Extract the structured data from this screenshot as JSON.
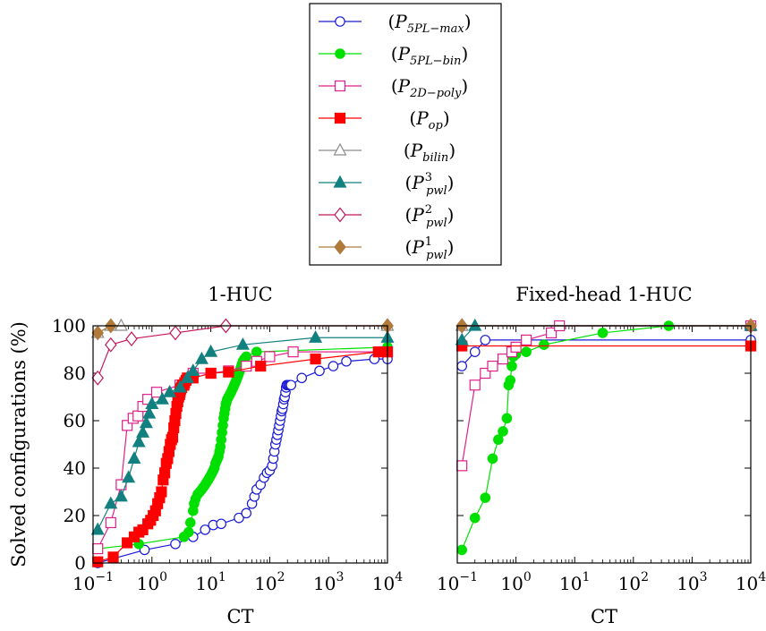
{
  "legend": {
    "placement": "top-center",
    "entries": [
      {
        "label": "(P5PL-max)",
        "main": "P",
        "sub": "5PL−max",
        "sup": "",
        "color": "#1a1ad6",
        "marker": "circle",
        "filled": false
      },
      {
        "label": "(P5PL-bin)",
        "main": "P",
        "sub": "5PL−bin",
        "sup": "",
        "color": "#00e000",
        "marker": "circle",
        "filled": true
      },
      {
        "label": "(P2D-poly)",
        "main": "P",
        "sub": "2D−poly",
        "sup": "",
        "color": "#e0208a",
        "marker": "square",
        "filled": false
      },
      {
        "label": "(Pop)",
        "main": "P",
        "sub": "op",
        "sup": "",
        "color": "#ff0000",
        "marker": "square",
        "filled": true
      },
      {
        "label": "(Pbilin)",
        "main": "P",
        "sub": "bilin",
        "sup": "",
        "color": "#8c8c8c",
        "marker": "triangle",
        "filled": false
      },
      {
        "label": "(P3pwl)",
        "main": "P",
        "sub": "pwl",
        "sup": "3",
        "color": "#138080",
        "marker": "triangle",
        "filled": true
      },
      {
        "label": "(P2pwl)",
        "main": "P",
        "sub": "pwl",
        "sup": "2",
        "color": "#c2185b",
        "marker": "diamond",
        "filled": false
      },
      {
        "label": "(P1pwl)",
        "main": "P",
        "sub": "pwl",
        "sup": "1",
        "color": "#b07a3a",
        "marker": "diamond",
        "filled": true
      }
    ]
  },
  "chart_data": [
    {
      "type": "line",
      "title": "1-HUC",
      "xlabel": "CT",
      "ylabel": "Solved configurations (%)",
      "xscale": "log",
      "xlim": [
        0.1,
        10000
      ],
      "ylim": [
        0,
        100
      ],
      "xticks": [
        "10^-1",
        "10^0",
        "10^1",
        "10^2",
        "10^3",
        "10^4"
      ],
      "yticks": [
        0,
        20,
        40,
        60,
        80,
        100
      ],
      "grid": false,
      "series": [
        {
          "name": "(P5PL-max)",
          "x": [
            0.12,
            0.75,
            2.5,
            5,
            8,
            11,
            15,
            30,
            40,
            50,
            55,
            60,
            70,
            80,
            90,
            100,
            110,
            115,
            120,
            125,
            130,
            135,
            140,
            145,
            150,
            155,
            160,
            165,
            170,
            175,
            180,
            185,
            190,
            195,
            200,
            210,
            220,
            230,
            350,
            700,
            1200,
            2000,
            6000,
            10000
          ],
          "y": [
            0,
            5.5,
            8,
            11,
            14,
            16,
            16.5,
            19,
            21,
            25,
            28,
            31,
            33,
            36,
            38,
            39,
            41,
            44,
            47,
            50,
            52,
            54,
            56,
            58,
            60,
            62,
            64,
            65,
            67,
            69,
            70,
            72,
            74,
            75,
            75,
            75,
            75,
            75,
            78,
            81,
            83,
            85,
            86,
            86
          ]
        },
        {
          "name": "(P5PL-bin)",
          "x": [
            0.12,
            0.6,
            3.5,
            4.2,
            4.5,
            5,
            5.2,
            5.5,
            6,
            6.5,
            7,
            7.5,
            8,
            8.5,
            9,
            9.5,
            10,
            10.5,
            11,
            11.5,
            12,
            12.5,
            13,
            13.5,
            14,
            14.5,
            15,
            15.5,
            16,
            16.5,
            17,
            17.5,
            18,
            18.5,
            19,
            20,
            21,
            22,
            23,
            24,
            25,
            26,
            27,
            28,
            29,
            30,
            31,
            32,
            33,
            34,
            35,
            37,
            40,
            60,
            10000
          ],
          "y": [
            6,
            8,
            11,
            13,
            17,
            22,
            25,
            27,
            29,
            30,
            31,
            32,
            33,
            34,
            35,
            36,
            37,
            38,
            39,
            40,
            42,
            43,
            44,
            45,
            47,
            49,
            52,
            55,
            58,
            61,
            63,
            65,
            67,
            68,
            69,
            70,
            71,
            72,
            73,
            74,
            75,
            76,
            77,
            78,
            79,
            80,
            81,
            82,
            83,
            84,
            85,
            86,
            87,
            89,
            91
          ]
        },
        {
          "name": "(P2D-poly)",
          "x": [
            0.12,
            0.2,
            0.3,
            0.38,
            0.48,
            0.58,
            0.7,
            0.85,
            1.2,
            3,
            5,
            10,
            20,
            40,
            60,
            100,
            250,
            10000
          ],
          "y": [
            6,
            17,
            33,
            58,
            61,
            62,
            66,
            69,
            72,
            75,
            80,
            80,
            81,
            83,
            85,
            87,
            89,
            89
          ]
        },
        {
          "name": "(Pop)",
          "x": [
            0.12,
            0.22,
            0.38,
            0.5,
            0.6,
            0.7,
            0.85,
            0.95,
            1.05,
            1.15,
            1.25,
            1.35,
            1.45,
            1.55,
            1.65,
            1.75,
            1.85,
            1.95,
            2.05,
            2.15,
            2.25,
            2.35,
            2.45,
            2.55,
            2.65,
            2.75,
            2.85,
            2.95,
            3.0,
            3.05,
            3.1,
            3.2,
            3.3,
            3.4,
            3.5,
            3.6,
            3.8,
            4.0,
            5,
            10,
            20,
            70,
            600,
            7000,
            10000
          ],
          "y": [
            0.5,
            2.5,
            8.5,
            11,
            13,
            14,
            16.5,
            18,
            20,
            22,
            25,
            27.5,
            30,
            35,
            38,
            42,
            44,
            47,
            50,
            52,
            53,
            57,
            60,
            63,
            66,
            68,
            70,
            71,
            72,
            73,
            73.5,
            74,
            75,
            75,
            75,
            76,
            77,
            78,
            78,
            80,
            80.5,
            83,
            86,
            89,
            89
          ]
        },
        {
          "name": "(Pbilin)",
          "x": [
            0.12,
            0.2,
            0.3,
            10000
          ],
          "y": [
            97,
            100,
            100,
            100
          ]
        },
        {
          "name": "(P3pwl)",
          "x": [
            0.12,
            0.2,
            0.3,
            0.4,
            0.5,
            0.6,
            0.7,
            0.8,
            0.9,
            1.0,
            1.5,
            2,
            3,
            4,
            5,
            7,
            10,
            35,
            600,
            10000
          ],
          "y": [
            14,
            25,
            28,
            36,
            44,
            51,
            55,
            59,
            63,
            67,
            69,
            72,
            74,
            78,
            81,
            86,
            89,
            92,
            95,
            95
          ]
        },
        {
          "name": "(P2pwl)",
          "x": [
            0.12,
            0.2,
            0.45,
            2.5,
            18,
            10000
          ],
          "y": [
            78,
            92,
            94.5,
            97,
            100,
            100
          ]
        },
        {
          "name": "(P1pwl)",
          "x": [
            0.12,
            0.2,
            10000
          ],
          "y": [
            97,
            100,
            100
          ]
        }
      ]
    },
    {
      "type": "line",
      "title": "Fixed-head 1-HUC",
      "xlabel": "CT",
      "ylabel": "",
      "xscale": "log",
      "xlim": [
        0.1,
        10000
      ],
      "ylim": [
        0,
        100
      ],
      "xticks": [
        "10^-1",
        "10^0",
        "10^1",
        "10^2",
        "10^3",
        "10^4"
      ],
      "grid": false,
      "series": [
        {
          "name": "(P5PL-max)",
          "x": [
            0.12,
            0.2,
            0.3,
            10000
          ],
          "y": [
            83,
            89,
            94,
            94
          ]
        },
        {
          "name": "(P5PL-bin)",
          "x": [
            0.12,
            0.2,
            0.3,
            0.4,
            0.5,
            0.6,
            0.7,
            0.75,
            0.8,
            0.85,
            0.9,
            1.0,
            1.5,
            3,
            30,
            400,
            10000
          ],
          "y": [
            5.5,
            19,
            27.5,
            44,
            52,
            55.5,
            61,
            75,
            77,
            83,
            87,
            88,
            89,
            92,
            97,
            100,
            100
          ]
        },
        {
          "name": "(P2D-poly)",
          "x": [
            0.12,
            0.2,
            0.3,
            0.4,
            0.6,
            0.85,
            1.0,
            1.5,
            4,
            5.5,
            10000
          ],
          "y": [
            41,
            75,
            80,
            83,
            86,
            89,
            91,
            94,
            97,
            100,
            100
          ]
        },
        {
          "name": "(Pop)",
          "x": [
            0.12,
            10000
          ],
          "y": [
            91.5,
            91.5
          ]
        },
        {
          "name": "(Pbilin)",
          "x": [
            0.12,
            10000
          ],
          "y": [
            100,
            100
          ]
        },
        {
          "name": "(P3pwl)",
          "x": [
            0.12,
            0.2,
            10000
          ],
          "y": [
            94,
            100,
            100
          ]
        },
        {
          "name": "(P2pwl)",
          "x": [
            0.12,
            10000
          ],
          "y": [
            100,
            100
          ]
        },
        {
          "name": "(P1pwl)",
          "x": [
            0.12,
            10000
          ],
          "y": [
            100,
            100
          ]
        }
      ]
    }
  ]
}
